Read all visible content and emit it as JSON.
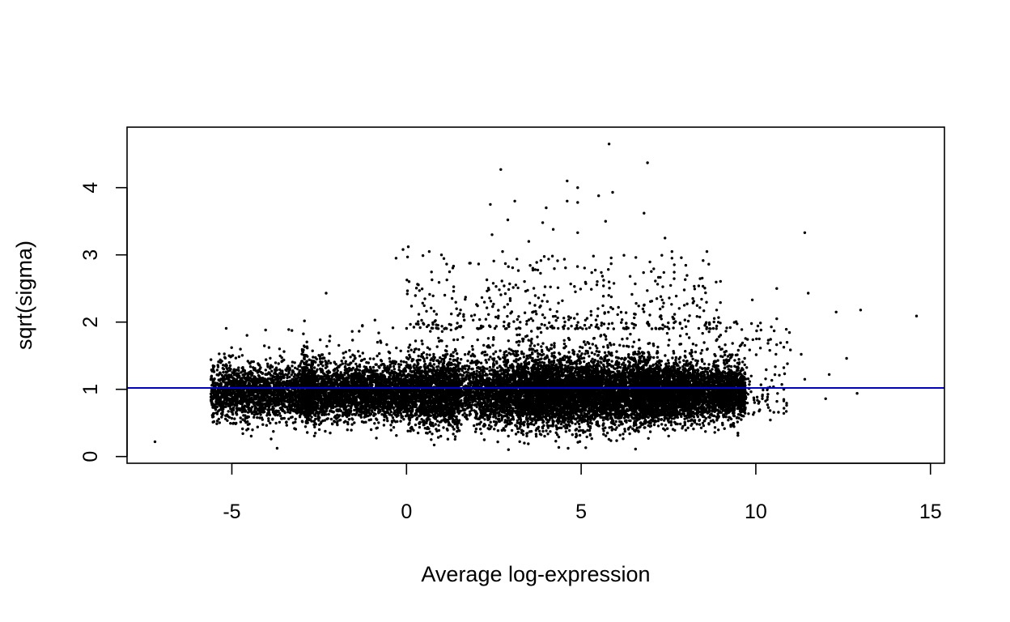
{
  "chart_data": {
    "type": "scatter",
    "title": "",
    "xlabel": "Average log-expression",
    "ylabel": "sqrt(sigma)",
    "xlim": [
      -8,
      15.4
    ],
    "ylim": [
      -0.1,
      4.9
    ],
    "x_ticks": [
      -5,
      0,
      5,
      10,
      15
    ],
    "y_ticks": [
      0,
      1,
      2,
      3,
      4
    ],
    "grid": false,
    "legend": "none",
    "point_color": "#000000",
    "trend_line": {
      "type": "horizontal",
      "y": 1.02,
      "color": "#0000CC"
    },
    "main_cloud": {
      "description_points_approx": 17000,
      "x_range": [
        -6.3,
        10.8
      ],
      "y_center": 0.95,
      "y_spread_range": [
        0.1,
        2.1
      ],
      "density_peak_x": 4.5
    },
    "outliers": [
      {
        "x": -7.2,
        "y": 0.22
      },
      {
        "x": 5.8,
        "y": 4.65
      },
      {
        "x": 6.9,
        "y": 4.37
      },
      {
        "x": 2.7,
        "y": 4.27
      },
      {
        "x": 4.6,
        "y": 4.1
      },
      {
        "x": 4.9,
        "y": 4.0
      },
      {
        "x": 5.9,
        "y": 3.93
      },
      {
        "x": 5.5,
        "y": 3.88
      },
      {
        "x": 3.1,
        "y": 3.8
      },
      {
        "x": 4.6,
        "y": 3.8
      },
      {
        "x": 4.9,
        "y": 3.78
      },
      {
        "x": 2.4,
        "y": 3.75
      },
      {
        "x": 4.0,
        "y": 3.7
      },
      {
        "x": 6.8,
        "y": 3.62
      },
      {
        "x": 2.9,
        "y": 3.52
      },
      {
        "x": 5.7,
        "y": 3.5
      },
      {
        "x": 3.9,
        "y": 3.48
      },
      {
        "x": 11.4,
        "y": 3.33
      },
      {
        "x": 4.9,
        "y": 3.33
      },
      {
        "x": 4.2,
        "y": 3.38
      },
      {
        "x": 2.45,
        "y": 3.3
      },
      {
        "x": 7.4,
        "y": 3.25
      },
      {
        "x": 3.5,
        "y": 3.2
      },
      {
        "x": 0.05,
        "y": 3.12
      },
      {
        "x": -0.1,
        "y": 3.08
      },
      {
        "x": 7.6,
        "y": 3.05
      },
      {
        "x": 8.6,
        "y": 3.05
      },
      {
        "x": 0.65,
        "y": 3.05
      },
      {
        "x": 2.75,
        "y": 3.05
      },
      {
        "x": -0.3,
        "y": 2.95
      },
      {
        "x": 7.6,
        "y": 2.95
      },
      {
        "x": 1.0,
        "y": 3.0
      },
      {
        "x": 10.6,
        "y": 2.5
      },
      {
        "x": 11.5,
        "y": 2.43
      },
      {
        "x": -2.3,
        "y": 2.43
      },
      {
        "x": 13.0,
        "y": 2.18
      },
      {
        "x": 12.3,
        "y": 2.15
      },
      {
        "x": 14.6,
        "y": 2.09
      },
      {
        "x": 12.6,
        "y": 1.46
      },
      {
        "x": 11.3,
        "y": 1.52
      },
      {
        "x": 12.1,
        "y": 1.22
      },
      {
        "x": 11.4,
        "y": 1.15
      },
      {
        "x": 12.0,
        "y": 0.86
      },
      {
        "x": 12.9,
        "y": 0.94
      },
      {
        "x": 9.9,
        "y": 2.33
      },
      {
        "x": 10.6,
        "y": 2.05
      },
      {
        "x": 10.1,
        "y": 1.75
      },
      {
        "x": 10.4,
        "y": 1.58
      }
    ]
  }
}
